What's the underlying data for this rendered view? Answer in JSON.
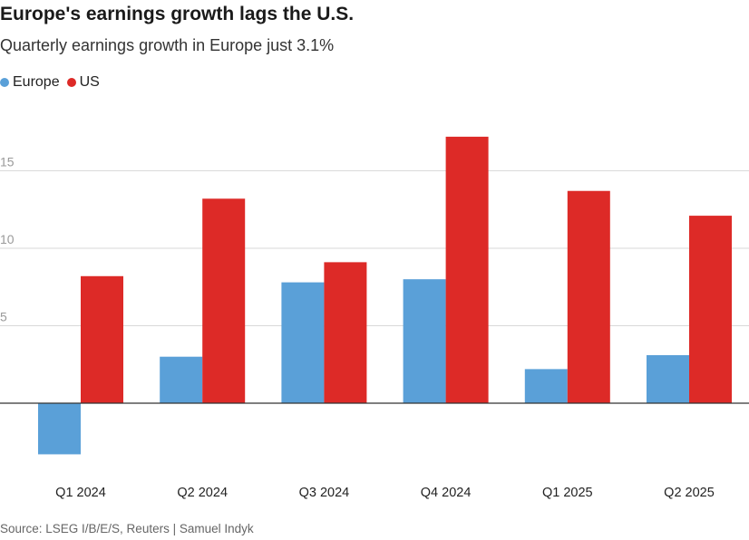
{
  "header": {
    "title": "Europe's earnings growth lags the U.S.",
    "subtitle": "Quarterly earnings growth in Europe just 3.1%"
  },
  "footer": {
    "source": "Source: LSEG I/B/E/S, Reuters | Samuel Indyk"
  },
  "colors": {
    "europe": "#5aa0d8",
    "us": "#dd2a27"
  },
  "chart_data": {
    "type": "bar",
    "title": "Europe's earnings growth lags the U.S.",
    "subtitle": "Quarterly earnings growth in Europe just 3.1%",
    "xlabel": "",
    "ylabel": "",
    "ylim": [
      -4,
      18
    ],
    "yticks": [
      5,
      10,
      15
    ],
    "grid": true,
    "legend_position": "top-left",
    "categories": [
      "Q1 2024",
      "Q2 2024",
      "Q3 2024",
      "Q4 2024",
      "Q1 2025",
      "Q2 2025"
    ],
    "series": [
      {
        "name": "Europe",
        "color": "#5aa0d8",
        "values": [
          -3.3,
          3.0,
          7.8,
          8.0,
          2.2,
          3.1
        ]
      },
      {
        "name": "US",
        "color": "#dd2a27",
        "values": [
          8.2,
          13.2,
          9.1,
          17.2,
          13.7,
          12.1
        ]
      }
    ]
  }
}
